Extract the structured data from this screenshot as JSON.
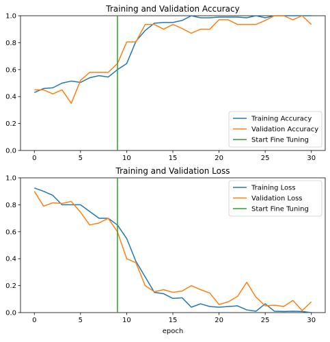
{
  "chart_data": [
    {
      "type": "line",
      "title": "Training and Validation Accuracy",
      "xlabel": "",
      "ylabel": "",
      "xlim": [
        -1.5,
        31.5
      ],
      "ylim": [
        0.0,
        1.0
      ],
      "xticks": [
        0,
        5,
        10,
        15,
        20,
        25,
        30
      ],
      "yticks": [
        0.0,
        0.2,
        0.4,
        0.6,
        0.8,
        1.0
      ],
      "grid": false,
      "legend_position": "lower-right",
      "vline": {
        "x": 9,
        "name": "Start Fine Tuning",
        "color": "#2ca02c"
      },
      "x": [
        0,
        1,
        2,
        3,
        4,
        5,
        6,
        7,
        8,
        9,
        10,
        11,
        12,
        13,
        14,
        15,
        16,
        17,
        18,
        19,
        20,
        21,
        22,
        23,
        24,
        25,
        26,
        27,
        28,
        29,
        30
      ],
      "series": [
        {
          "name": "Training Accuracy",
          "color": "#1f77b4",
          "values": [
            0.43,
            0.46,
            0.465,
            0.5,
            0.515,
            0.505,
            0.54,
            0.555,
            0.545,
            0.6,
            0.645,
            0.81,
            0.89,
            0.945,
            0.95,
            0.95,
            0.965,
            1.0,
            0.985,
            0.985,
            0.99,
            0.99,
            0.99,
            0.985,
            1.0,
            0.985,
            1.0,
            1.0,
            1.0,
            1.0,
            1.0
          ]
        },
        {
          "name": "Validation Accuracy",
          "color": "#ff7f0e",
          "values": [
            0.45,
            0.45,
            0.42,
            0.45,
            0.35,
            0.52,
            0.58,
            0.58,
            0.58,
            0.645,
            0.805,
            0.805,
            0.935,
            0.935,
            0.9,
            0.935,
            0.905,
            0.87,
            0.9,
            0.9,
            0.97,
            0.97,
            0.935,
            0.935,
            0.935,
            0.965,
            1.0,
            1.0,
            0.97,
            1.0,
            0.935
          ]
        }
      ]
    },
    {
      "type": "line",
      "title": "Training and Validation Loss",
      "xlabel": "epoch",
      "ylabel": "",
      "xlim": [
        -1.5,
        31.5
      ],
      "ylim": [
        0.0,
        1.0
      ],
      "xticks": [
        0,
        5,
        10,
        15,
        20,
        25,
        30
      ],
      "yticks": [
        0.0,
        0.2,
        0.4,
        0.6,
        0.8,
        1.0
      ],
      "grid": false,
      "legend_position": "upper-right",
      "vline": {
        "x": 9,
        "name": "Start Fine Tuning",
        "color": "#2ca02c"
      },
      "x": [
        0,
        1,
        2,
        3,
        4,
        5,
        6,
        7,
        8,
        9,
        10,
        11,
        12,
        13,
        14,
        15,
        16,
        17,
        18,
        19,
        20,
        21,
        22,
        23,
        24,
        25,
        26,
        27,
        28,
        29,
        30
      ],
      "series": [
        {
          "name": "Training Loss",
          "color": "#1f77b4",
          "values": [
            0.925,
            0.9,
            0.87,
            0.8,
            0.8,
            0.8,
            0.75,
            0.7,
            0.7,
            0.65,
            0.55,
            0.38,
            0.265,
            0.15,
            0.14,
            0.105,
            0.11,
            0.04,
            0.065,
            0.045,
            0.04,
            0.045,
            0.05,
            0.02,
            0.01,
            0.065,
            0.01,
            0.008,
            0.01,
            0.008,
            0.0
          ]
        },
        {
          "name": "Validation Loss",
          "color": "#ff7f0e",
          "values": [
            0.9,
            0.79,
            0.815,
            0.81,
            0.825,
            0.745,
            0.65,
            0.665,
            0.7,
            0.6,
            0.4,
            0.37,
            0.2,
            0.155,
            0.17,
            0.15,
            0.16,
            0.2,
            0.17,
            0.145,
            0.06,
            0.08,
            0.12,
            0.225,
            0.115,
            0.05,
            0.055,
            0.045,
            0.09,
            0.015,
            0.08
          ]
        }
      ]
    }
  ]
}
